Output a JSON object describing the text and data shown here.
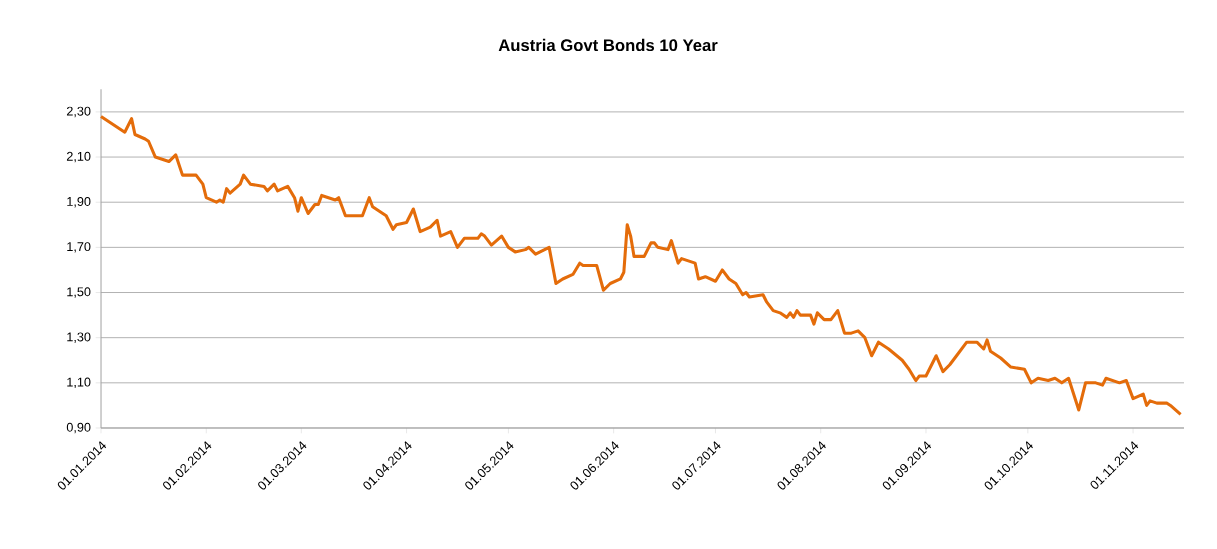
{
  "chart_data": {
    "type": "line",
    "title": "Austria Govt Bonds 10 Year",
    "x": [
      "2014-01-01",
      "2014-01-08",
      "2014-01-10",
      "2014-01-11",
      "2014-01-14",
      "2014-01-15",
      "2014-01-17",
      "2014-01-21",
      "2014-01-23",
      "2014-01-25",
      "2014-01-29",
      "2014-01-31",
      "2014-02-01",
      "2014-02-04",
      "2014-02-05",
      "2014-02-06",
      "2014-02-07",
      "2014-02-08",
      "2014-02-11",
      "2014-02-12",
      "2014-02-14",
      "2014-02-18",
      "2014-02-19",
      "2014-02-21",
      "2014-02-22",
      "2014-02-25",
      "2014-02-27",
      "2014-02-28",
      "2014-03-01",
      "2014-03-03",
      "2014-03-05",
      "2014-03-06",
      "2014-03-07",
      "2014-03-11",
      "2014-03-12",
      "2014-03-14",
      "2014-03-19",
      "2014-03-21",
      "2014-03-22",
      "2014-03-25",
      "2014-03-26",
      "2014-03-28",
      "2014-03-29",
      "2014-04-01",
      "2014-04-03",
      "2014-04-05",
      "2014-04-08",
      "2014-04-10",
      "2014-04-11",
      "2014-04-14",
      "2014-04-16",
      "2014-04-18",
      "2014-04-22",
      "2014-04-23",
      "2014-04-24",
      "2014-04-26",
      "2014-04-29",
      "2014-05-01",
      "2014-05-03",
      "2014-05-06",
      "2014-05-07",
      "2014-05-09",
      "2014-05-13",
      "2014-05-15",
      "2014-05-17",
      "2014-05-20",
      "2014-05-22",
      "2014-05-23",
      "2014-05-27",
      "2014-05-29",
      "2014-05-31",
      "2014-06-03",
      "2014-06-04",
      "2014-06-05",
      "2014-06-06",
      "2014-06-07",
      "2014-06-10",
      "2014-06-12",
      "2014-06-13",
      "2014-06-14",
      "2014-06-17",
      "2014-06-18",
      "2014-06-20",
      "2014-06-21",
      "2014-06-25",
      "2014-06-26",
      "2014-06-28",
      "2014-07-01",
      "2014-07-03",
      "2014-07-05",
      "2014-07-07",
      "2014-07-09",
      "2014-07-10",
      "2014-07-11",
      "2014-07-15",
      "2014-07-16",
      "2014-07-18",
      "2014-07-20",
      "2014-07-22",
      "2014-07-23",
      "2014-07-24",
      "2014-07-25",
      "2014-07-26",
      "2014-07-29",
      "2014-07-30",
      "2014-07-31",
      "2014-08-02",
      "2014-08-04",
      "2014-08-06",
      "2014-08-08",
      "2014-08-10",
      "2014-08-12",
      "2014-08-14",
      "2014-08-16",
      "2014-08-18",
      "2014-08-21",
      "2014-08-25",
      "2014-08-27",
      "2014-08-29",
      "2014-08-30",
      "2014-09-01",
      "2014-09-04",
      "2014-09-06",
      "2014-09-08",
      "2014-09-10",
      "2014-09-13",
      "2014-09-15",
      "2014-09-16",
      "2014-09-18",
      "2014-09-19",
      "2014-09-20",
      "2014-09-23",
      "2014-09-26",
      "2014-09-30",
      "2014-10-02",
      "2014-10-04",
      "2014-10-07",
      "2014-10-09",
      "2014-10-11",
      "2014-10-13",
      "2014-10-16",
      "2014-10-18",
      "2014-10-21",
      "2014-10-23",
      "2014-10-24",
      "2014-10-28",
      "2014-10-30",
      "2014-11-01",
      "2014-11-04",
      "2014-11-05",
      "2014-11-06",
      "2014-11-08",
      "2014-11-11",
      "2014-11-12",
      "2014-11-15"
    ],
    "series": [
      {
        "color": "#e46c0a",
        "values": [
          2.28,
          2.21,
          2.27,
          2.2,
          2.18,
          2.17,
          2.1,
          2.08,
          2.11,
          2.02,
          2.02,
          1.98,
          1.92,
          1.9,
          1.91,
          1.9,
          1.96,
          1.94,
          1.98,
          2.02,
          1.98,
          1.97,
          1.95,
          1.98,
          1.95,
          1.97,
          1.92,
          1.86,
          1.92,
          1.85,
          1.89,
          1.89,
          1.93,
          1.91,
          1.92,
          1.84,
          1.84,
          1.92,
          1.88,
          1.85,
          1.84,
          1.78,
          1.8,
          1.81,
          1.87,
          1.77,
          1.79,
          1.82,
          1.75,
          1.77,
          1.7,
          1.74,
          1.74,
          1.76,
          1.75,
          1.71,
          1.75,
          1.7,
          1.68,
          1.69,
          1.7,
          1.67,
          1.7,
          1.54,
          1.56,
          1.58,
          1.63,
          1.62,
          1.62,
          1.51,
          1.54,
          1.56,
          1.59,
          1.8,
          1.75,
          1.66,
          1.66,
          1.72,
          1.72,
          1.7,
          1.69,
          1.73,
          1.63,
          1.65,
          1.63,
          1.56,
          1.57,
          1.55,
          1.6,
          1.56,
          1.54,
          1.49,
          1.5,
          1.48,
          1.49,
          1.46,
          1.42,
          1.41,
          1.39,
          1.41,
          1.39,
          1.42,
          1.4,
          1.4,
          1.36,
          1.41,
          1.38,
          1.38,
          1.42,
          1.32,
          1.32,
          1.33,
          1.3,
          1.22,
          1.28,
          1.25,
          1.2,
          1.16,
          1.11,
          1.13,
          1.13,
          1.22,
          1.15,
          1.18,
          1.22,
          1.28,
          1.28,
          1.28,
          1.25,
          1.29,
          1.24,
          1.21,
          1.17,
          1.16,
          1.1,
          1.12,
          1.11,
          1.12,
          1.1,
          1.12,
          0.98,
          1.1,
          1.1,
          1.09,
          1.12,
          1.1,
          1.11,
          1.03,
          1.05,
          1.0,
          1.02,
          1.01,
          1.01,
          1.0,
          0.96
        ]
      }
    ],
    "xlim": [
      "2014-01-01",
      "2014-11-16"
    ],
    "xticks": [
      {
        "value": "2014-01-01",
        "label": "01.01.2014"
      },
      {
        "value": "2014-02-01",
        "label": "01.02.2014"
      },
      {
        "value": "2014-03-01",
        "label": "01.03.2014"
      },
      {
        "value": "2014-04-01",
        "label": "01.04.2014"
      },
      {
        "value": "2014-05-01",
        "label": "01.05.2014"
      },
      {
        "value": "2014-06-01",
        "label": "01.06.2014"
      },
      {
        "value": "2014-07-01",
        "label": "01.07.2014"
      },
      {
        "value": "2014-08-01",
        "label": "01.08.2014"
      },
      {
        "value": "2014-09-01",
        "label": "01.09.2014"
      },
      {
        "value": "2014-10-01",
        "label": "01.10.2014"
      },
      {
        "value": "2014-11-01",
        "label": "01.11.2014"
      }
    ],
    "ylim": [
      0.9,
      2.4
    ],
    "yticks": [
      {
        "value": 0.9,
        "label": "0,90"
      },
      {
        "value": 1.1,
        "label": "1,10"
      },
      {
        "value": 1.3,
        "label": "1,30"
      },
      {
        "value": 1.5,
        "label": "1,50"
      },
      {
        "value": 1.7,
        "label": "1,70"
      },
      {
        "value": 1.9,
        "label": "1,90"
      },
      {
        "value": 2.1,
        "label": "2,10"
      },
      {
        "value": 2.3,
        "label": "2,30"
      }
    ],
    "grid": "y",
    "marker": "none",
    "line_style": "solid"
  }
}
